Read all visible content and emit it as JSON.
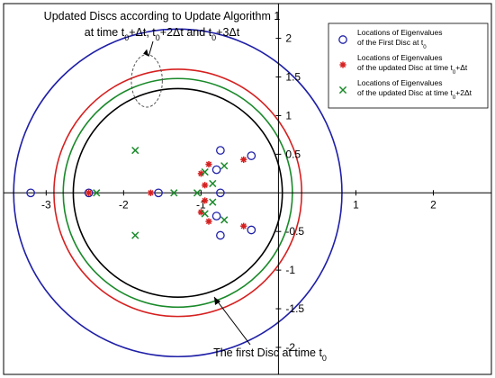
{
  "chart_data": {
    "type": "scatter",
    "title": "",
    "xlabel": "",
    "ylabel": "",
    "xlim": [
      -3.55,
      2.75
    ],
    "ylim": [
      -2.35,
      2.45
    ],
    "x_ticks": [
      -3,
      -2,
      -1,
      1,
      2
    ],
    "x_tick_labels": [
      "-3",
      "-2",
      "-1",
      "1",
      "2"
    ],
    "y_ticks": [
      -2,
      -1.5,
      -1,
      -0.5,
      0.5,
      1,
      1.5,
      2
    ],
    "y_tick_labels": [
      "-2",
      "-1.5",
      "-1",
      "-0.5",
      "0.5",
      "1",
      "1.5",
      "2"
    ],
    "axes_through_origin": true,
    "grid": false,
    "legend_position": "top-right",
    "colors": {
      "first_disc": "#1f1fa8",
      "update1": "#d62020",
      "update2": "#1a8a2a",
      "update3": "#000000",
      "dashed_ellipse": "#555555",
      "axes": "#000000"
    },
    "discs": [
      {
        "role": "first_disc",
        "center": [
          -1.3,
          0
        ],
        "radius": 2.12
      },
      {
        "role": "update1",
        "center": [
          -1.3,
          0
        ],
        "radius": 1.6
      },
      {
        "role": "update2",
        "center": [
          -1.3,
          0
        ],
        "radius": 1.48
      },
      {
        "role": "update3",
        "center": [
          -1.3,
          0
        ],
        "radius": 1.35
      }
    ],
    "dashed_ellipse": {
      "center": [
        -1.7,
        1.45
      ],
      "rx": 0.2,
      "ry": 0.34
    },
    "series": [
      {
        "name": "Locations of Eigenvalues of the First Disc at t0",
        "legend_lines": [
          "Locations of Eigenvalues",
          "of the First Disc at t"
        ],
        "legend_subscripts": [
          "",
          "0"
        ],
        "marker": "circle",
        "color": "#1f1fa8",
        "points": [
          [
            -3.2,
            0
          ],
          [
            -2.45,
            0
          ],
          [
            -1.55,
            0
          ],
          [
            -0.75,
            0
          ],
          [
            -0.75,
            0.55
          ],
          [
            -0.75,
            -0.55
          ],
          [
            -0.8,
            0.3
          ],
          [
            -0.8,
            -0.3
          ],
          [
            -0.35,
            0.48
          ],
          [
            -0.35,
            -0.48
          ]
        ]
      },
      {
        "name": "Locations of Eigenvalues of the updated Disc at time t0+Δt",
        "legend_lines": [
          "Locations of Eigenvalues",
          "of the updated Disc at time t"
        ],
        "legend_subscripts": [
          "",
          "0"
        ],
        "legend_suffix": [
          "",
          "+Δt"
        ],
        "marker": "star",
        "color": "#d62020",
        "points": [
          [
            -2.45,
            0
          ],
          [
            -1.65,
            0
          ],
          [
            -0.9,
            0.37
          ],
          [
            -0.9,
            -0.37
          ],
          [
            -1.0,
            0.25
          ],
          [
            -1.0,
            -0.25
          ],
          [
            -0.95,
            0.1
          ],
          [
            -0.95,
            -0.1
          ],
          [
            -0.45,
            0.43
          ],
          [
            -0.45,
            -0.43
          ]
        ]
      },
      {
        "name": "Locations of Eigenvalues of the updated Disc at time t0+2Δt",
        "legend_lines": [
          "Locations of Eigenvalues",
          "of the updated Disc at time t"
        ],
        "legend_subscripts": [
          "",
          "0"
        ],
        "legend_suffix": [
          "",
          "+2Δt"
        ],
        "marker": "x",
        "color": "#1a8a2a",
        "points": [
          [
            -2.35,
            0
          ],
          [
            -1.35,
            0
          ],
          [
            -1.05,
            0
          ],
          [
            -1.85,
            0.55
          ],
          [
            -1.85,
            -0.55
          ],
          [
            -0.95,
            0.27
          ],
          [
            -0.95,
            -0.27
          ],
          [
            -0.85,
            0.12
          ],
          [
            -0.85,
            -0.12
          ],
          [
            -0.7,
            0.35
          ],
          [
            -0.7,
            -0.35
          ]
        ]
      }
    ],
    "annotations": [
      {
        "target": "dashed_ellipse",
        "lines": [
          {
            "parts": [
              {
                "t": "Updated Discs according to Update Algorithm 1"
              }
            ]
          },
          {
            "parts": [
              {
                "t": "at time t"
              },
              {
                "t": "0",
                "sub": true
              },
              {
                "t": "+Δt, t"
              },
              {
                "t": "0",
                "sub": true
              },
              {
                "t": "+2Δt and t"
              },
              {
                "t": "0",
                "sub": true
              },
              {
                "t": "+3Δt"
              }
            ]
          }
        ]
      },
      {
        "target": "first_disc",
        "lines": [
          {
            "parts": [
              {
                "t": "The first Disc at time t"
              },
              {
                "t": "0",
                "sub": true
              }
            ]
          }
        ]
      }
    ]
  }
}
